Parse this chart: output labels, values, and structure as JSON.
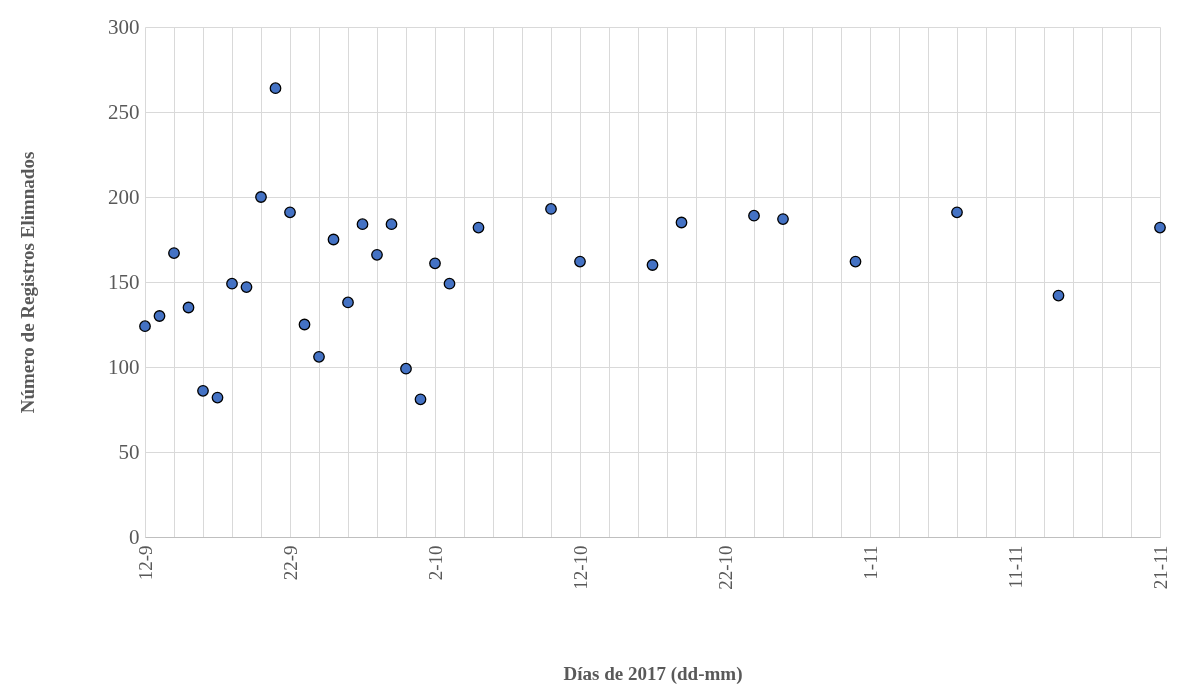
{
  "chart_data": {
    "type": "scatter",
    "xlabel": "Días de 2017 (dd-mm)",
    "ylabel": "Número de Registros Elimnados",
    "x": [
      "2017-09-12",
      "2017-09-13",
      "2017-09-14",
      "2017-09-15",
      "2017-09-16",
      "2017-09-17",
      "2017-09-18",
      "2017-09-19",
      "2017-09-20",
      "2017-09-21",
      "2017-09-22",
      "2017-09-23",
      "2017-09-24",
      "2017-09-25",
      "2017-09-26",
      "2017-09-27",
      "2017-09-28",
      "2017-09-29",
      "2017-09-30",
      "2017-10-01",
      "2017-10-02",
      "2017-10-03",
      "2017-10-05",
      "2017-10-10",
      "2017-10-12",
      "2017-10-17",
      "2017-10-19",
      "2017-10-24",
      "2017-10-26",
      "2017-10-31",
      "2017-11-07",
      "2017-11-14",
      "2017-11-21"
    ],
    "series": [
      {
        "color": "#4472c4",
        "values": [
          124,
          130,
          167,
          135,
          86,
          82,
          149,
          147,
          200,
          264,
          191,
          125,
          106,
          175,
          138,
          184,
          166,
          184,
          99,
          81,
          161,
          149,
          182,
          193,
          162,
          160,
          185,
          189,
          187,
          162,
          191,
          142,
          182
        ]
      }
    ],
    "xlim": [
      "2017-09-12",
      "2017-11-21"
    ],
    "xticks": [
      {
        "value": "2017-09-12",
        "label": "12-9"
      },
      {
        "value": "2017-09-14",
        "label": null
      },
      {
        "value": "2017-09-16",
        "label": null
      },
      {
        "value": "2017-09-18",
        "label": null
      },
      {
        "value": "2017-09-20",
        "label": null
      },
      {
        "value": "2017-09-22",
        "label": "22-9"
      },
      {
        "value": "2017-09-24",
        "label": null
      },
      {
        "value": "2017-09-26",
        "label": null
      },
      {
        "value": "2017-09-28",
        "label": null
      },
      {
        "value": "2017-09-30",
        "label": null
      },
      {
        "value": "2017-10-02",
        "label": "2-10"
      },
      {
        "value": "2017-10-04",
        "label": null
      },
      {
        "value": "2017-10-06",
        "label": null
      },
      {
        "value": "2017-10-08",
        "label": null
      },
      {
        "value": "2017-10-10",
        "label": null
      },
      {
        "value": "2017-10-12",
        "label": "12-10"
      },
      {
        "value": "2017-10-14",
        "label": null
      },
      {
        "value": "2017-10-16",
        "label": null
      },
      {
        "value": "2017-10-18",
        "label": null
      },
      {
        "value": "2017-10-20",
        "label": null
      },
      {
        "value": "2017-10-22",
        "label": "22-10"
      },
      {
        "value": "2017-10-24",
        "label": null
      },
      {
        "value": "2017-10-26",
        "label": null
      },
      {
        "value": "2017-10-28",
        "label": null
      },
      {
        "value": "2017-10-30",
        "label": null
      },
      {
        "value": "2017-11-01",
        "label": "1-11"
      },
      {
        "value": "2017-11-03",
        "label": null
      },
      {
        "value": "2017-11-05",
        "label": null
      },
      {
        "value": "2017-11-07",
        "label": null
      },
      {
        "value": "2017-11-09",
        "label": null
      },
      {
        "value": "2017-11-11",
        "label": "11-11"
      },
      {
        "value": "2017-11-13",
        "label": null
      },
      {
        "value": "2017-11-15",
        "label": null
      },
      {
        "value": "2017-11-17",
        "label": null
      },
      {
        "value": "2017-11-19",
        "label": null
      },
      {
        "value": "2017-11-21",
        "label": "21-11"
      }
    ],
    "ylim": [
      0,
      300
    ],
    "yticks": [
      0,
      50,
      100,
      150,
      200,
      250,
      300
    ],
    "grid": true,
    "marker": "circle"
  }
}
